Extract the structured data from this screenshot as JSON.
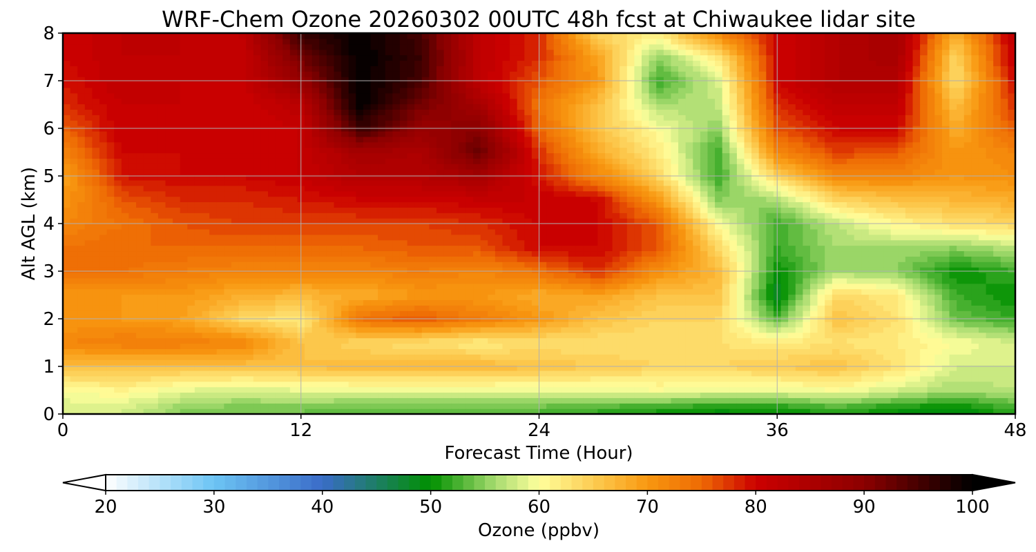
{
  "chart_data": {
    "type": "heatmap",
    "subtype": "filled-contour time-height cross section",
    "title": "WRF-Chem Ozone  20260302 00UTC 48h fcst at Chiwaukee lidar site",
    "xlabel": "Forecast Time (Hour)",
    "ylabel": "Alt AGL (km)",
    "xlim": [
      0,
      48
    ],
    "ylim": [
      0,
      8
    ],
    "xticks": [
      0,
      12,
      24,
      36,
      48
    ],
    "yticks": [
      0,
      1,
      2,
      3,
      4,
      5,
      6,
      7,
      8
    ],
    "grid": true,
    "colorbar": {
      "label": "Ozone  (ppbv)",
      "min": 20,
      "max": 100,
      "ticks": [
        20,
        30,
        40,
        50,
        60,
        70,
        80,
        90,
        100
      ],
      "extend": "both",
      "stops": [
        {
          "value": 20,
          "color": "#ffffff"
        },
        {
          "value": 30,
          "color": "#6cc4f4"
        },
        {
          "value": 40,
          "color": "#3a6cc8"
        },
        {
          "value": 50,
          "color": "#009000"
        },
        {
          "value": 56,
          "color": "#a8dc70"
        },
        {
          "value": 60,
          "color": "#ffff9c"
        },
        {
          "value": 66,
          "color": "#fcc244"
        },
        {
          "value": 70,
          "color": "#f89810"
        },
        {
          "value": 75,
          "color": "#ee6a04"
        },
        {
          "value": 80,
          "color": "#cc0000"
        },
        {
          "value": 90,
          "color": "#8c0000"
        },
        {
          "value": 100,
          "color": "#000000"
        }
      ]
    },
    "heights_km": [
      0.1,
      0.5,
      1,
      1.5,
      2,
      2.5,
      3,
      3.5,
      4,
      4.5,
      5,
      5.5,
      6,
      6.5,
      7,
      7.5,
      8
    ],
    "hours": [
      0,
      3,
      6,
      9,
      12,
      15,
      18,
      21,
      24,
      27,
      30,
      33,
      36,
      39,
      42,
      45,
      48
    ],
    "values_ppbv": [
      [
        58,
        58,
        55,
        54,
        54,
        53,
        53,
        53,
        53,
        52,
        51,
        50,
        50,
        52,
        50,
        49,
        52
      ],
      [
        60,
        61,
        59,
        58,
        59,
        59,
        59,
        59,
        59,
        59,
        60,
        59,
        59,
        60,
        58,
        56,
        57
      ],
      [
        66,
        66,
        66,
        66,
        66,
        67,
        67,
        67,
        66,
        65,
        64,
        64,
        65,
        66,
        63,
        58,
        58
      ],
      [
        72,
        73,
        73,
        72,
        66,
        64,
        63,
        62,
        63,
        63,
        63,
        63,
        62,
        63,
        62,
        60,
        58
      ],
      [
        70,
        70,
        69,
        64,
        62,
        74,
        76,
        73,
        70,
        66,
        64,
        64,
        53,
        66,
        63,
        54,
        52
      ],
      [
        70,
        70,
        70,
        68,
        67,
        68,
        70,
        70,
        68,
        69,
        66,
        66,
        48,
        64,
        62,
        52,
        50
      ],
      [
        74,
        74,
        73,
        72,
        72,
        72,
        73,
        72,
        74,
        78,
        71,
        67,
        50,
        56,
        55,
        50,
        52
      ],
      [
        74,
        75,
        75,
        75,
        75,
        75,
        76,
        76,
        80,
        80,
        76,
        64,
        52,
        56,
        56,
        55,
        57
      ],
      [
        72,
        74,
        76,
        77,
        77,
        77,
        77,
        78,
        80,
        80,
        76,
        60,
        52,
        57,
        61,
        63,
        64
      ],
      [
        70,
        76,
        78,
        78,
        79,
        80,
        80,
        81,
        81,
        80,
        70,
        55,
        56,
        64,
        66,
        67,
        68
      ],
      [
        69,
        79,
        80,
        80,
        81,
        84,
        84,
        86,
        79,
        72,
        64,
        52,
        64,
        72,
        72,
        70,
        71
      ],
      [
        72,
        80,
        80,
        80,
        81,
        86,
        85,
        93,
        78,
        68,
        62,
        52,
        72,
        77,
        76,
        70,
        72
      ],
      [
        75,
        81,
        80,
        80,
        81,
        96,
        88,
        90,
        75,
        66,
        60,
        55,
        76,
        80,
        80,
        68,
        76
      ],
      [
        78,
        81,
        81,
        80,
        83,
        100,
        92,
        86,
        74,
        66,
        56,
        57,
        78,
        82,
        82,
        66,
        78
      ],
      [
        79,
        82,
        81,
        81,
        88,
        100,
        95,
        82,
        76,
        70,
        52,
        58,
        80,
        84,
        84,
        63,
        80
      ],
      [
        80,
        82,
        82,
        81,
        92,
        100,
        96,
        82,
        78,
        69,
        55,
        62,
        80,
        84,
        86,
        64,
        82
      ],
      [
        80,
        82,
        82,
        82,
        96,
        100,
        95,
        82,
        78,
        64,
        62,
        72,
        80,
        84,
        86,
        68,
        82
      ]
    ]
  }
}
